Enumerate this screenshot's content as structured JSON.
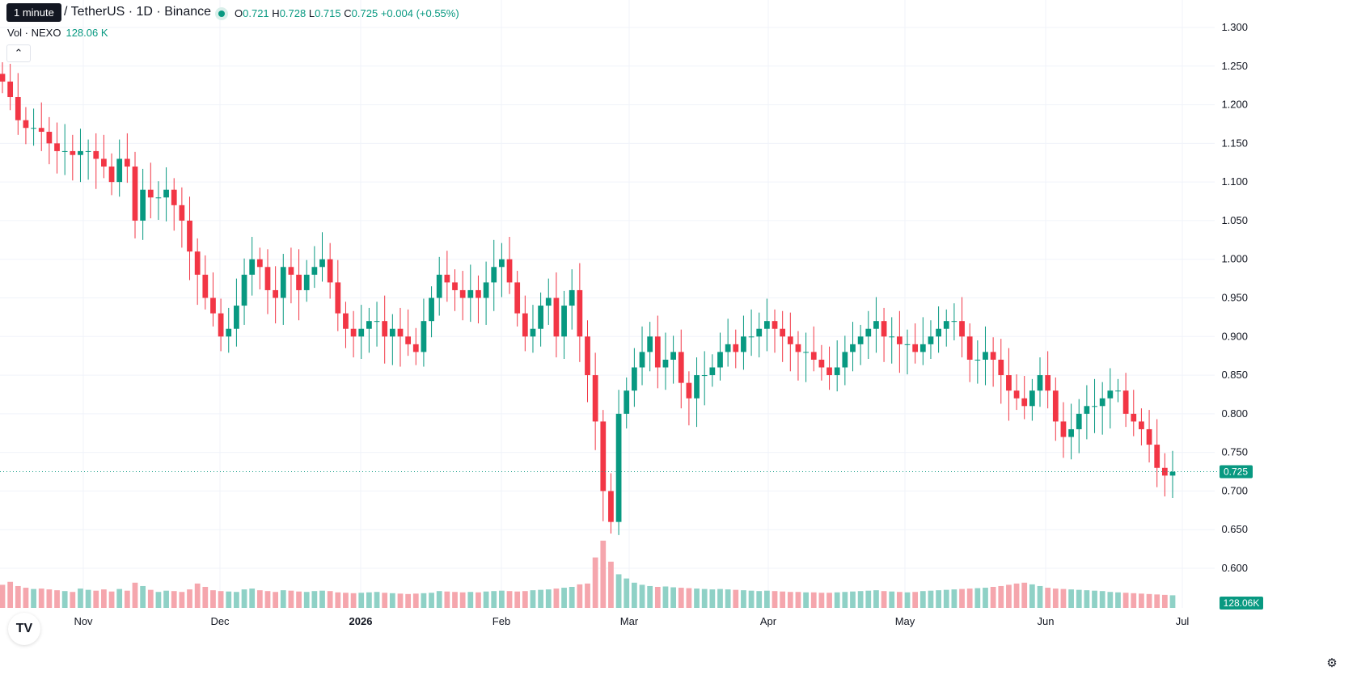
{
  "header": {
    "tooltip": "1 minute",
    "symbol": "/ TetherUS · 1D · Binance",
    "ohlc": {
      "o_label": "O",
      "o": "0.721",
      "h_label": "H",
      "h": "0.728",
      "l_label": "L",
      "l": "0.715",
      "c_label": "C",
      "c": "0.725",
      "change": "+0.004 (+0.55%)"
    },
    "volume_label": "Vol · NEXO",
    "volume_value": "128.06 K",
    "collapse_icon": "chevron-up-icon"
  },
  "colors": {
    "up": "#089981",
    "down": "#f23645",
    "vol_up": "#8fd1c6",
    "vol_down": "#f5a6ad",
    "grid": "#f0f3fa"
  },
  "chart_data": {
    "type": "candlestick",
    "x_tick_labels": [
      "Nov",
      "Dec",
      "2026",
      "Feb",
      "Mar",
      "Apr",
      "May",
      "Jun",
      "Jul"
    ],
    "y_ticks": [
      "1.300",
      "1.250",
      "1.200",
      "1.150",
      "1.100",
      "1.050",
      "1.000",
      "0.950",
      "0.900",
      "0.850",
      "0.800",
      "0.750",
      "0.700",
      "0.650",
      "0.600"
    ],
    "ylim": [
      0.57,
      1.305
    ],
    "last_price": 0.725,
    "last_price_label": "0.725",
    "last_volume_label": "128.06K",
    "series": [
      {
        "name": "price",
        "close": [
          1.23,
          1.21,
          1.18,
          1.17,
          1.17,
          1.165,
          1.15,
          1.14,
          1.14,
          1.135,
          1.14,
          1.14,
          1.13,
          1.12,
          1.1,
          1.13,
          1.12,
          1.05,
          1.09,
          1.08,
          1.08,
          1.09,
          1.07,
          1.05,
          1.01,
          0.98,
          0.95,
          0.93,
          0.9,
          0.91,
          0.94,
          0.98,
          1.0,
          0.99,
          0.96,
          0.95,
          0.99,
          0.98,
          0.96,
          0.98,
          0.99,
          1.0,
          0.97,
          0.93,
          0.91,
          0.9,
          0.91,
          0.92,
          0.92,
          0.9,
          0.91,
          0.9,
          0.89,
          0.88,
          0.92,
          0.95,
          0.98,
          0.97,
          0.96,
          0.95,
          0.96,
          0.95,
          0.97,
          0.99,
          1.0,
          0.97,
          0.93,
          0.9,
          0.91,
          0.94,
          0.95,
          0.9,
          0.94,
          0.96,
          0.9,
          0.85,
          0.79,
          0.7,
          0.66,
          0.8,
          0.83,
          0.86,
          0.88,
          0.9,
          0.86,
          0.87,
          0.88,
          0.84,
          0.82,
          0.85,
          0.85,
          0.86,
          0.88,
          0.89,
          0.88,
          0.9,
          0.9,
          0.91,
          0.92,
          0.91,
          0.9,
          0.89,
          0.88,
          0.88,
          0.87,
          0.86,
          0.85,
          0.86,
          0.88,
          0.89,
          0.9,
          0.91,
          0.92,
          0.9,
          0.9,
          0.89,
          0.89,
          0.88,
          0.89,
          0.9,
          0.91,
          0.92,
          0.92,
          0.9,
          0.87,
          0.87,
          0.88,
          0.87,
          0.85,
          0.83,
          0.82,
          0.81,
          0.83,
          0.85,
          0.83,
          0.79,
          0.77,
          0.78,
          0.8,
          0.81,
          0.81,
          0.82,
          0.83,
          0.83,
          0.8,
          0.79,
          0.78,
          0.76,
          0.73,
          0.72,
          0.725
        ]
      },
      {
        "name": "volume",
        "values": [
          55,
          62,
          52,
          48,
          45,
          46,
          44,
          42,
          40,
          38,
          46,
          43,
          41,
          44,
          39,
          45,
          41,
          60,
          52,
          43,
          38,
          41,
          40,
          38,
          44,
          58,
          50,
          42,
          40,
          39,
          38,
          44,
          46,
          42,
          40,
          38,
          42,
          41,
          39,
          38,
          40,
          41,
          40,
          37,
          36,
          35,
          36,
          37,
          38,
          36,
          35,
          34,
          33,
          34,
          35,
          36,
          40,
          39,
          38,
          37,
          38,
          37,
          39,
          40,
          41,
          40,
          39,
          40,
          42,
          43,
          44,
          46,
          48,
          50,
          56,
          58,
          120,
          160,
          110,
          80,
          70,
          60,
          55,
          52,
          50,
          51,
          49,
          48,
          47,
          46,
          45,
          44,
          45,
          44,
          43,
          42,
          41,
          40,
          41,
          40,
          39,
          38,
          38,
          37,
          37,
          36,
          36,
          37,
          38,
          39,
          40,
          41,
          42,
          40,
          39,
          38,
          37,
          38,
          40,
          41,
          42,
          43,
          44,
          45,
          46,
          47,
          48,
          50,
          52,
          55,
          58,
          60,
          56,
          52,
          48,
          46,
          45,
          44,
          43,
          42,
          41,
          40,
          38,
          37,
          36,
          35,
          34,
          33,
          32,
          31,
          30
        ]
      }
    ]
  }
}
